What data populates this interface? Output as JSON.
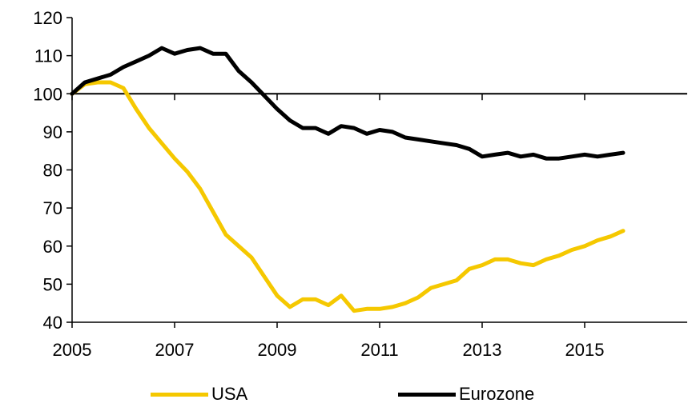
{
  "chart_data": {
    "type": "line",
    "title": "",
    "xlabel": "",
    "ylabel": "",
    "xlim": [
      2005,
      2017
    ],
    "ylim": [
      40,
      120
    ],
    "x_tick_labels": [
      "2005",
      "2007",
      "2009",
      "2011",
      "2013",
      "2015"
    ],
    "y_tick_labels": [
      "40",
      "50",
      "60",
      "70",
      "80",
      "90",
      "100",
      "110",
      "120"
    ],
    "reference_line": 100,
    "grid": false,
    "legend_position": "bottom",
    "series": [
      {
        "name": "USA",
        "color": "#f5c800",
        "x": [
          2005.0,
          2005.25,
          2005.5,
          2005.75,
          2006.0,
          2006.25,
          2006.5,
          2006.75,
          2007.0,
          2007.25,
          2007.5,
          2007.75,
          2008.0,
          2008.25,
          2008.5,
          2008.75,
          2009.0,
          2009.25,
          2009.5,
          2009.75,
          2010.0,
          2010.25,
          2010.5,
          2010.75,
          2011.0,
          2011.25,
          2011.5,
          2011.75,
          2012.0,
          2012.25,
          2012.5,
          2012.75,
          2013.0,
          2013.25,
          2013.5,
          2013.75,
          2014.0,
          2014.25,
          2014.5,
          2014.75,
          2015.0,
          2015.25,
          2015.5,
          2015.75
        ],
        "values": [
          100,
          102.5,
          103,
          103,
          101.5,
          96,
          91,
          87,
          83,
          79.5,
          75,
          69,
          63,
          60,
          57,
          52,
          47,
          44,
          46,
          46,
          44.5,
          47,
          43,
          43.5,
          43.5,
          44,
          45,
          46.5,
          49,
          50,
          51,
          54,
          55,
          56.5,
          56.5,
          55.5,
          55,
          56.5,
          57.5,
          59,
          60,
          61.5,
          62.5,
          64
        ]
      },
      {
        "name": "Eurozone",
        "color": "#000000",
        "x": [
          2005.0,
          2005.25,
          2005.5,
          2005.75,
          2006.0,
          2006.25,
          2006.5,
          2006.75,
          2007.0,
          2007.25,
          2007.5,
          2007.75,
          2008.0,
          2008.25,
          2008.5,
          2008.75,
          2009.0,
          2009.25,
          2009.5,
          2009.75,
          2010.0,
          2010.25,
          2010.5,
          2010.75,
          2011.0,
          2011.25,
          2011.5,
          2011.75,
          2012.0,
          2012.25,
          2012.5,
          2012.75,
          2013.0,
          2013.25,
          2013.5,
          2013.75,
          2014.0,
          2014.25,
          2014.5,
          2014.75,
          2015.0,
          2015.25,
          2015.5,
          2015.75
        ],
        "values": [
          100,
          103,
          104,
          105,
          107,
          108.5,
          110,
          112,
          110.5,
          111.5,
          112,
          110.5,
          110.5,
          106,
          103,
          99.5,
          96,
          93,
          91,
          91,
          89.5,
          91.5,
          91,
          89.5,
          90.5,
          90,
          88.5,
          88,
          87.5,
          87,
          86.5,
          85.5,
          83.5,
          84,
          84.5,
          83.5,
          84,
          83,
          83,
          83.5,
          84,
          83.5,
          84,
          84.5
        ]
      }
    ]
  }
}
